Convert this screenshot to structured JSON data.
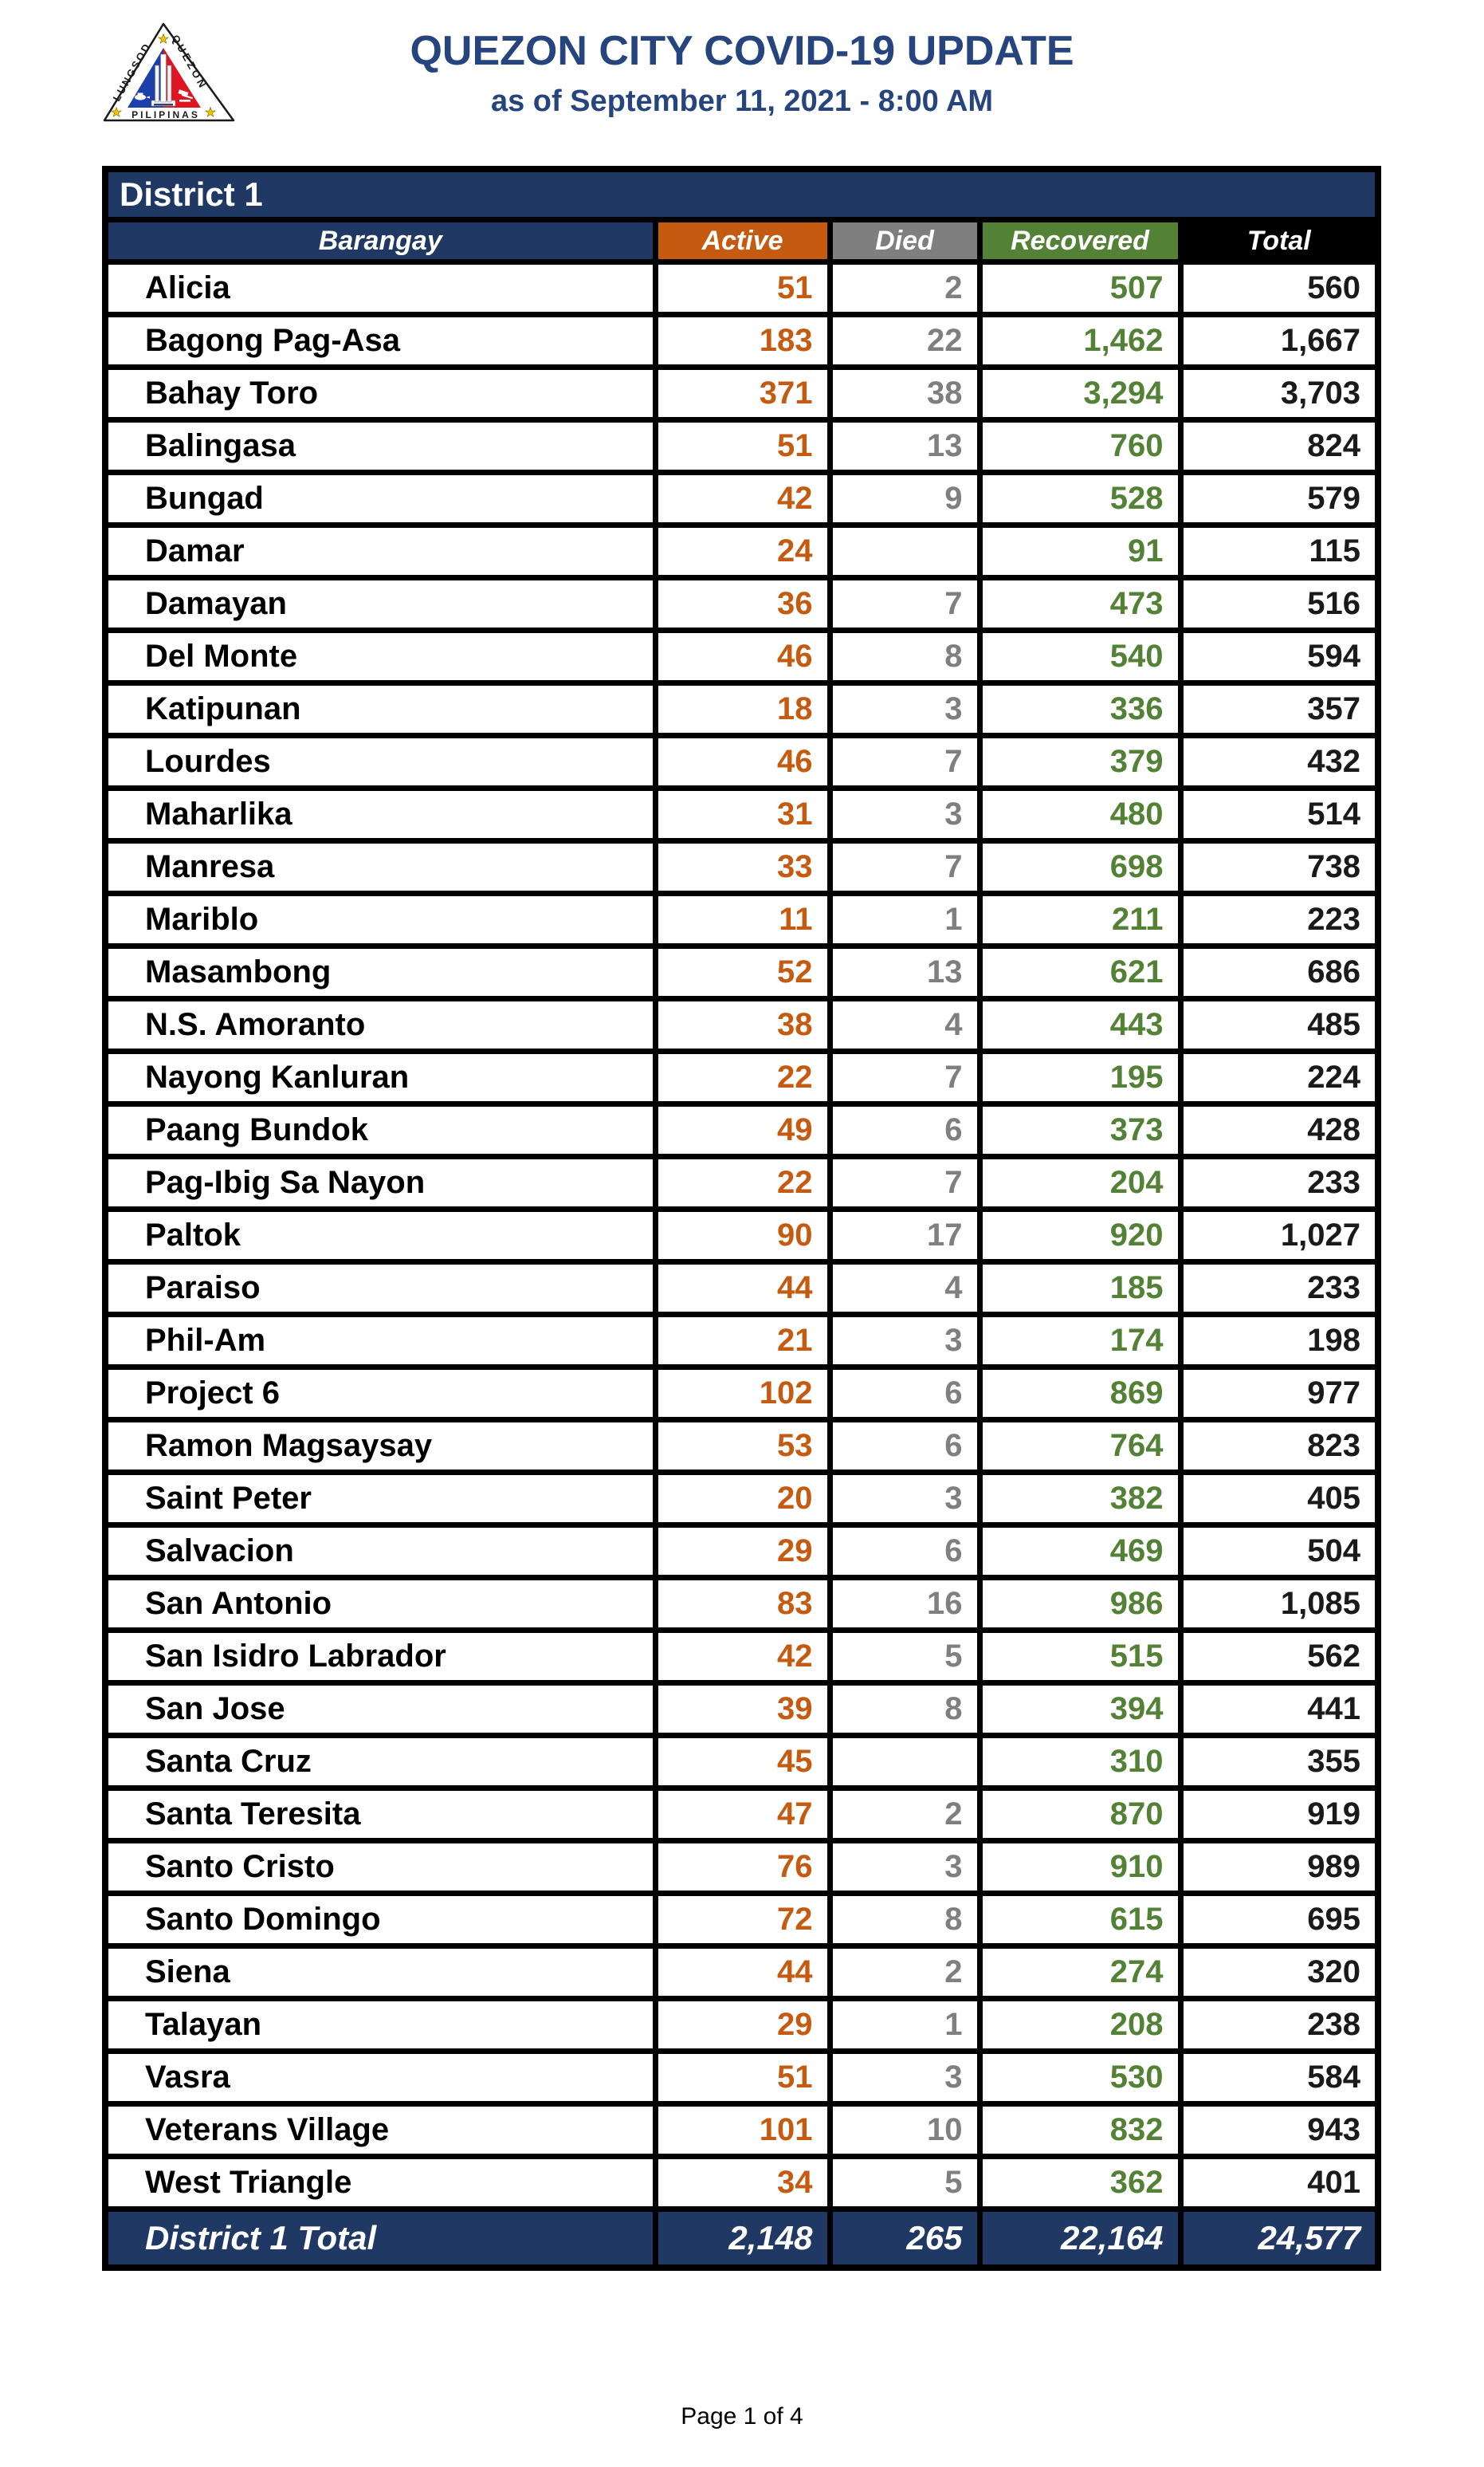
{
  "header": {
    "title": "QUEZON CITY COVID-19 UPDATE",
    "subtitle": "as of September 11, 2021 - 8:00 AM",
    "logo": {
      "text_left": "LUNGSOD",
      "text_right": "QUEZON",
      "text_bottom": "PILIPINAS"
    }
  },
  "table": {
    "district_label": "District 1",
    "columns": [
      "Barangay",
      "Active",
      "Died",
      "Recovered",
      "Total"
    ],
    "rows": [
      {
        "barangay": "Alicia",
        "active": "51",
        "died": "2",
        "recovered": "507",
        "total": "560"
      },
      {
        "barangay": "Bagong Pag-Asa",
        "active": "183",
        "died": "22",
        "recovered": "1,462",
        "total": "1,667"
      },
      {
        "barangay": "Bahay Toro",
        "active": "371",
        "died": "38",
        "recovered": "3,294",
        "total": "3,703"
      },
      {
        "barangay": "Balingasa",
        "active": "51",
        "died": "13",
        "recovered": "760",
        "total": "824"
      },
      {
        "barangay": "Bungad",
        "active": "42",
        "died": "9",
        "recovered": "528",
        "total": "579"
      },
      {
        "barangay": "Damar",
        "active": "24",
        "died": "",
        "recovered": "91",
        "total": "115"
      },
      {
        "barangay": "Damayan",
        "active": "36",
        "died": "7",
        "recovered": "473",
        "total": "516"
      },
      {
        "barangay": "Del Monte",
        "active": "46",
        "died": "8",
        "recovered": "540",
        "total": "594"
      },
      {
        "barangay": "Katipunan",
        "active": "18",
        "died": "3",
        "recovered": "336",
        "total": "357"
      },
      {
        "barangay": "Lourdes",
        "active": "46",
        "died": "7",
        "recovered": "379",
        "total": "432"
      },
      {
        "barangay": "Maharlika",
        "active": "31",
        "died": "3",
        "recovered": "480",
        "total": "514"
      },
      {
        "barangay": "Manresa",
        "active": "33",
        "died": "7",
        "recovered": "698",
        "total": "738"
      },
      {
        "barangay": "Mariblo",
        "active": "11",
        "died": "1",
        "recovered": "211",
        "total": "223"
      },
      {
        "barangay": "Masambong",
        "active": "52",
        "died": "13",
        "recovered": "621",
        "total": "686"
      },
      {
        "barangay": "N.S. Amoranto",
        "active": "38",
        "died": "4",
        "recovered": "443",
        "total": "485"
      },
      {
        "barangay": "Nayong Kanluran",
        "active": "22",
        "died": "7",
        "recovered": "195",
        "total": "224"
      },
      {
        "barangay": "Paang Bundok",
        "active": "49",
        "died": "6",
        "recovered": "373",
        "total": "428"
      },
      {
        "barangay": "Pag-Ibig Sa Nayon",
        "active": "22",
        "died": "7",
        "recovered": "204",
        "total": "233"
      },
      {
        "barangay": "Paltok",
        "active": "90",
        "died": "17",
        "recovered": "920",
        "total": "1,027"
      },
      {
        "barangay": "Paraiso",
        "active": "44",
        "died": "4",
        "recovered": "185",
        "total": "233"
      },
      {
        "barangay": "Phil-Am",
        "active": "21",
        "died": "3",
        "recovered": "174",
        "total": "198"
      },
      {
        "barangay": "Project 6",
        "active": "102",
        "died": "6",
        "recovered": "869",
        "total": "977"
      },
      {
        "barangay": "Ramon Magsaysay",
        "active": "53",
        "died": "6",
        "recovered": "764",
        "total": "823"
      },
      {
        "barangay": "Saint Peter",
        "active": "20",
        "died": "3",
        "recovered": "382",
        "total": "405"
      },
      {
        "barangay": "Salvacion",
        "active": "29",
        "died": "6",
        "recovered": "469",
        "total": "504"
      },
      {
        "barangay": "San Antonio",
        "active": "83",
        "died": "16",
        "recovered": "986",
        "total": "1,085"
      },
      {
        "barangay": "San Isidro Labrador",
        "active": "42",
        "died": "5",
        "recovered": "515",
        "total": "562"
      },
      {
        "barangay": "San Jose",
        "active": "39",
        "died": "8",
        "recovered": "394",
        "total": "441"
      },
      {
        "barangay": "Santa Cruz",
        "active": "45",
        "died": "",
        "recovered": "310",
        "total": "355"
      },
      {
        "barangay": "Santa Teresita",
        "active": "47",
        "died": "2",
        "recovered": "870",
        "total": "919"
      },
      {
        "barangay": "Santo Cristo",
        "active": "76",
        "died": "3",
        "recovered": "910",
        "total": "989"
      },
      {
        "barangay": "Santo Domingo",
        "active": "72",
        "died": "8",
        "recovered": "615",
        "total": "695"
      },
      {
        "barangay": "Siena",
        "active": "44",
        "died": "2",
        "recovered": "274",
        "total": "320"
      },
      {
        "barangay": "Talayan",
        "active": "29",
        "died": "1",
        "recovered": "208",
        "total": "238"
      },
      {
        "barangay": "Vasra",
        "active": "51",
        "died": "3",
        "recovered": "530",
        "total": "584"
      },
      {
        "barangay": "Veterans Village",
        "active": "101",
        "died": "10",
        "recovered": "832",
        "total": "943"
      },
      {
        "barangay": "West Triangle",
        "active": "34",
        "died": "5",
        "recovered": "362",
        "total": "401"
      }
    ],
    "total_row": {
      "label": "District 1 Total",
      "active": "2,148",
      "died": "265",
      "recovered": "22,164",
      "total": "24,577"
    }
  },
  "colors": {
    "navy": "#1F3864",
    "light_blue": "#BDD7EE",
    "active_orange": "#C55A11",
    "died_gray": "#7F7F7F",
    "recovered_green": "#538135",
    "total_black": "#000000",
    "title_navy": "#26457E",
    "seal_blue": "#1B3FAB",
    "seal_red": "#DD1622",
    "seal_star_yellow": "#F2C500"
  },
  "footer": {
    "page_label": "Page 1 of 4"
  }
}
